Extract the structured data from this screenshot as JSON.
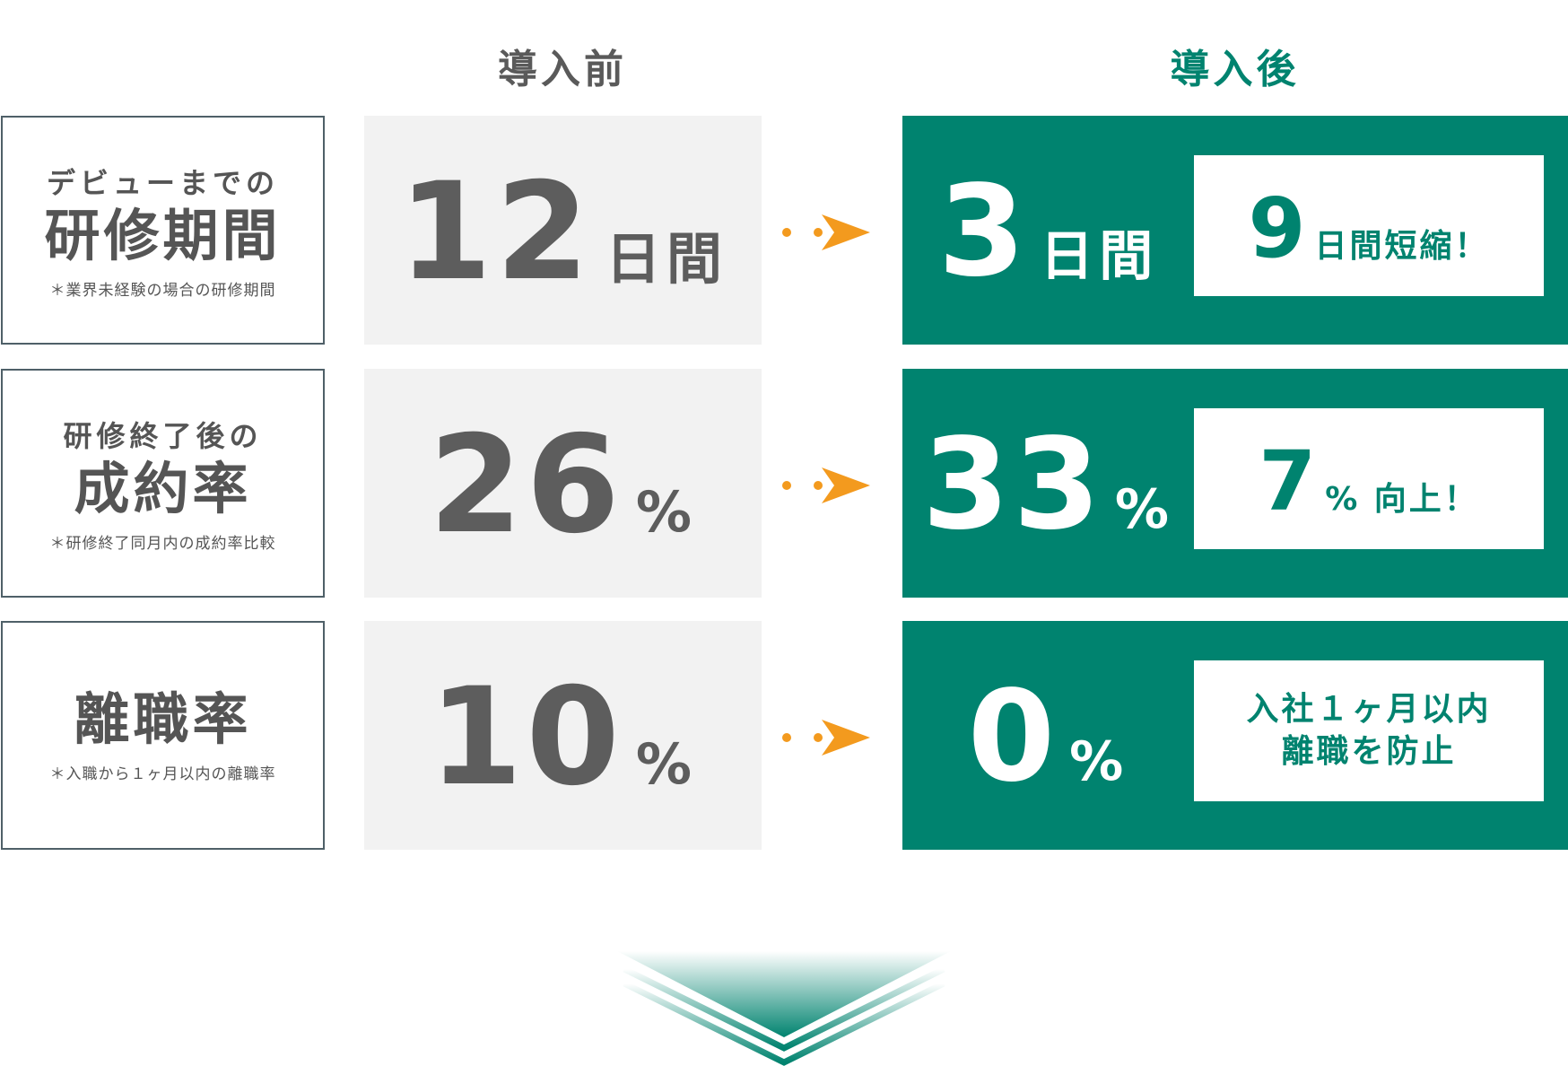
{
  "headers": {
    "before": "導入前",
    "after": "導入後"
  },
  "rows": [
    {
      "label_sub": "デビューまでの",
      "label_main": "研修期間",
      "label_note": "＊業界未経験の場合の研修期間",
      "before_value": "12",
      "before_unit": "日間",
      "after_value": "3",
      "after_unit": "日間",
      "result_value": "9",
      "result_text": "日間短縮！"
    },
    {
      "label_sub": "研修終了後の",
      "label_main": "成約率",
      "label_note": "＊研修終了同月内の成約率比較",
      "before_value": "26",
      "before_unit": "%",
      "after_value": "33",
      "after_unit": "%",
      "result_value": "7",
      "result_text": "% 向上！"
    },
    {
      "label_main": "離職率",
      "label_note": "＊入職から１ヶ月以内の離職率",
      "before_value": "10",
      "before_unit": "%",
      "after_value": "0",
      "after_unit": "%",
      "result_line1": "入社１ヶ月以内",
      "result_line2": "離職を防止"
    }
  ],
  "colors": {
    "accent_green": "#00836f",
    "arrow_orange": "#f39a1e",
    "before_bg": "#f2f2f2",
    "label_border": "#4f6068",
    "text_gray": "#5d5d5d"
  },
  "icons": {
    "row_arrow": "dotted-right-arrow-icon",
    "bottom": "triple-chevron-down-icon"
  }
}
